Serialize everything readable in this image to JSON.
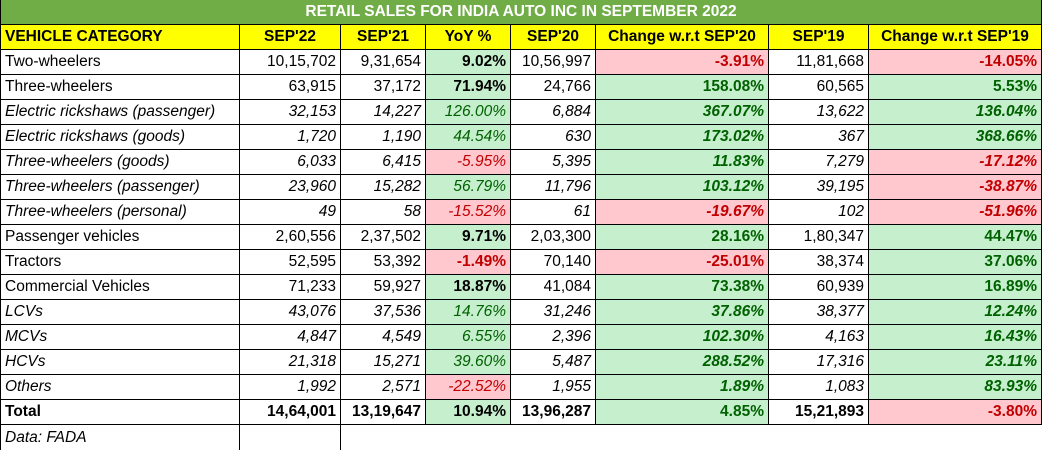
{
  "chart_data": {
    "type": "table",
    "title": "RETAIL SALES FOR INDIA AUTO INC IN SEPTEMBER 2022",
    "columns": [
      "VEHICLE CATEGORY",
      "SEP'22",
      "SEP'21",
      "YoY %",
      "SEP'20",
      "Change w.r.t SEP'20",
      "SEP'19",
      "Change w.r.t SEP'19"
    ],
    "rows": [
      {
        "cells": [
          "Two-wheelers",
          "10,15,702",
          "9,31,654",
          "9.02%",
          "10,56,997",
          "-3.91%",
          "11,81,668",
          "-14.05%"
        ],
        "style": "normal"
      },
      {
        "cells": [
          "Three-wheelers",
          "63,915",
          "37,172",
          "71.94%",
          "24,766",
          "158.08%",
          "60,565",
          "5.53%"
        ],
        "style": "normal"
      },
      {
        "cells": [
          "Electric rickshaws (passenger)",
          "32,153",
          "14,227",
          "126.00%",
          "6,884",
          "367.07%",
          "13,622",
          "136.04%"
        ],
        "style": "italic"
      },
      {
        "cells": [
          "Electric rickshaws (goods)",
          "1,720",
          "1,190",
          "44.54%",
          "630",
          "173.02%",
          "367",
          "368.66%"
        ],
        "style": "italic"
      },
      {
        "cells": [
          "Three-wheelers (goods)",
          "6,033",
          "6,415",
          "-5.95%",
          "5,395",
          "11.83%",
          "7,279",
          "-17.12%"
        ],
        "style": "italic"
      },
      {
        "cells": [
          "Three-wheelers (passenger)",
          "23,960",
          "15,282",
          "56.79%",
          "11,796",
          "103.12%",
          "39,195",
          "-38.87%"
        ],
        "style": "italic"
      },
      {
        "cells": [
          "Three-wheelers (personal)",
          "49",
          "58",
          "-15.52%",
          "61",
          "-19.67%",
          "102",
          "-51.96%"
        ],
        "style": "italic"
      },
      {
        "cells": [
          "Passenger vehicles",
          "2,60,556",
          "2,37,502",
          "9.71%",
          "2,03,300",
          "28.16%",
          "1,80,347",
          "44.47%"
        ],
        "style": "normal"
      },
      {
        "cells": [
          "Tractors",
          "52,595",
          "53,392",
          "-1.49%",
          "70,140",
          "-25.01%",
          "38,374",
          "37.06%"
        ],
        "style": "normal"
      },
      {
        "cells": [
          "Commercial Vehicles",
          "71,233",
          "59,927",
          "18.87%",
          "41,084",
          "73.38%",
          "60,939",
          "16.89%"
        ],
        "style": "normal"
      },
      {
        "cells": [
          "LCVs",
          "43,076",
          "37,536",
          "14.76%",
          "31,246",
          "37.86%",
          "38,377",
          "12.24%"
        ],
        "style": "italic"
      },
      {
        "cells": [
          "MCVs",
          "4,847",
          "4,549",
          "6.55%",
          "2,396",
          "102.30%",
          "4,163",
          "16.43%"
        ],
        "style": "italic"
      },
      {
        "cells": [
          "HCVs",
          "21,318",
          "15,271",
          "39.60%",
          "5,487",
          "288.52%",
          "17,316",
          "23.11%"
        ],
        "style": "italic"
      },
      {
        "cells": [
          "Others",
          "1,992",
          "2,571",
          "-22.52%",
          "1,955",
          "1.89%",
          "1,083",
          "83.93%"
        ],
        "style": "italic"
      },
      {
        "cells": [
          "Total",
          "14,64,001",
          "13,19,647",
          "10.94%",
          "13,96,287",
          "4.85%",
          "15,21,893",
          "-3.80%"
        ],
        "style": "bold"
      }
    ],
    "footnote": "Data: FADA",
    "colors": {
      "title_bg": "#70ad47",
      "header_bg": "#ffff00",
      "positive_bg": "#c6efce",
      "negative_bg": "#ffc7ce",
      "negative_text": "#c00000",
      "positive_text_green": "#006100"
    }
  }
}
